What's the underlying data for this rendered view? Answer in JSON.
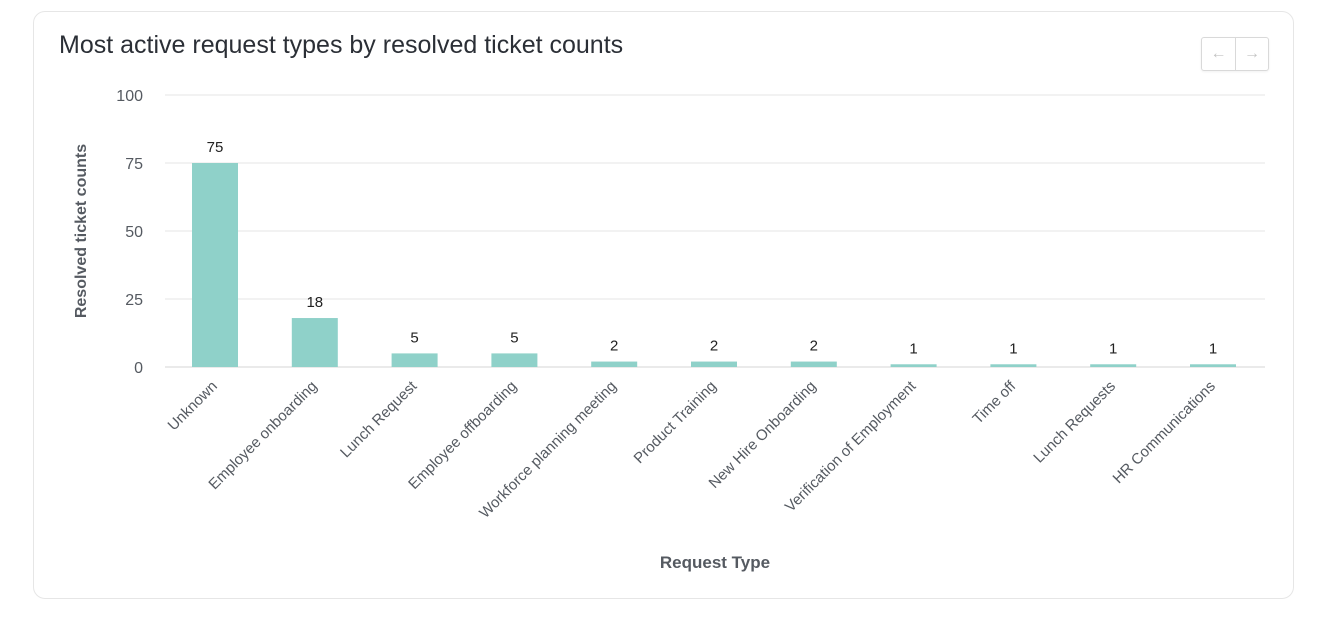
{
  "card": {
    "title": "Most active request types by resolved ticket counts",
    "nav": {
      "prev_icon": "arrow-left-icon",
      "next_icon": "arrow-right-icon",
      "prev_glyph": "←",
      "next_glyph": "→"
    }
  },
  "chart_data": {
    "type": "bar",
    "xlabel": "Request Type",
    "ylabel": "Resolved ticket counts",
    "ylim": [
      0,
      100
    ],
    "yticks": [
      0,
      25,
      50,
      75,
      100
    ],
    "grid": true,
    "legend": "none",
    "bar_color": "#8fd1c9",
    "categories": [
      "Unknown",
      "Employee onboarding",
      "Lunch Request",
      "Employee offboarding",
      "Workforce planning meeting",
      "Product Training",
      "New Hire Onboarding",
      "Verification of Employment",
      "Time off",
      "Lunch Requests",
      "HR Communications"
    ],
    "values": [
      75,
      18,
      5,
      5,
      2,
      2,
      2,
      1,
      1,
      1,
      1
    ]
  }
}
